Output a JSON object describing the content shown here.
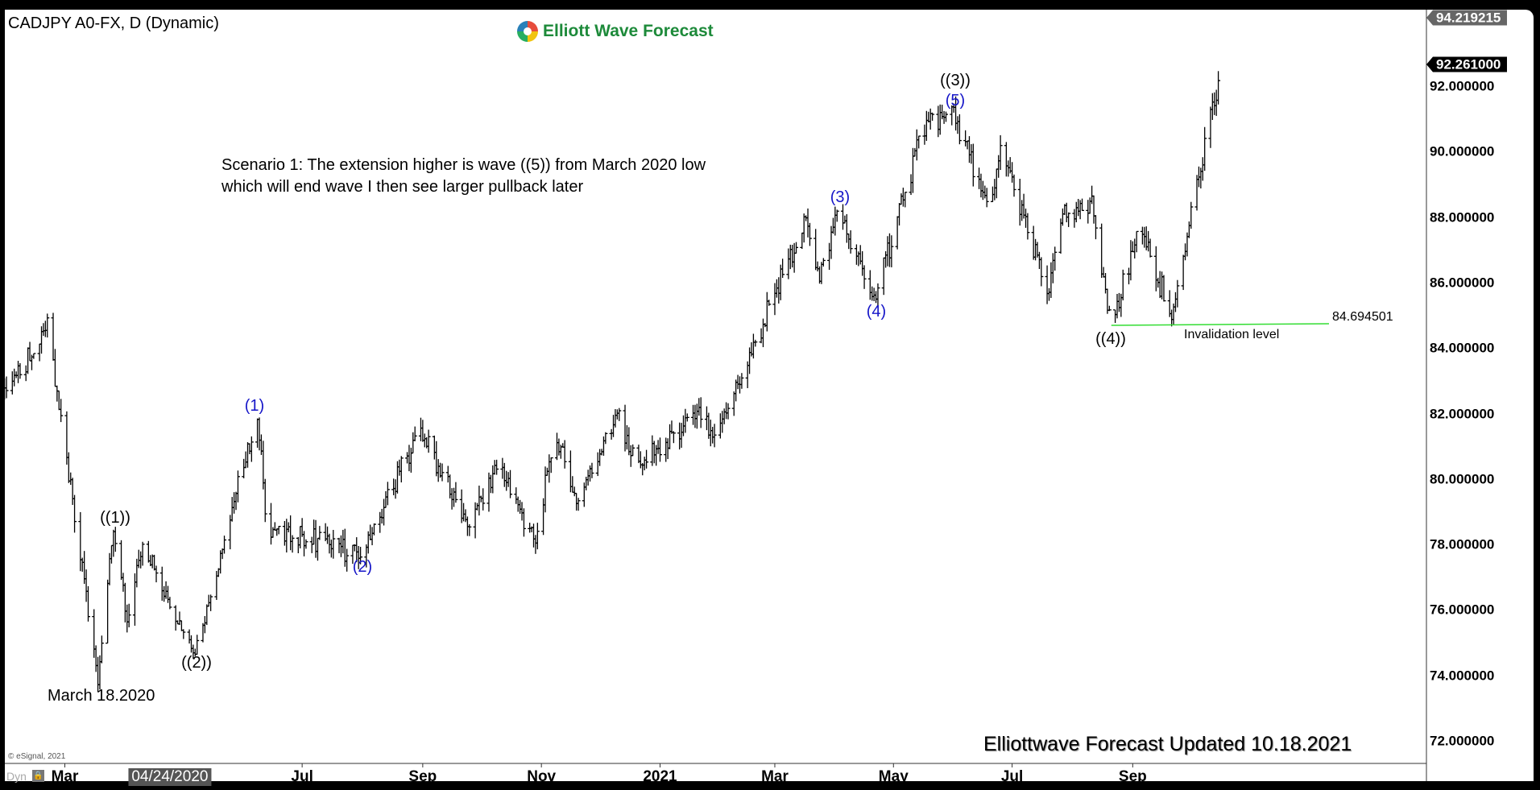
{
  "header": {
    "symbol_title": "CADJPY A0-FX, D (Dynamic)",
    "logo_text": "Elliott Wave Forecast"
  },
  "annotations": {
    "scenario": "Scenario 1: The extension higher is wave ((5)) from March 2020 low which will end wave I then see larger pullback later",
    "wave_1_major": "((1))",
    "wave_2_major": "((2))",
    "wave_3_major": "((3))",
    "wave_4_major": "((4))",
    "wave_1": "(1)",
    "wave_2": "(2)",
    "wave_3": "(3)",
    "wave_4": "(4)",
    "wave_5": "(5)",
    "low_label": "March 18.2020",
    "invalidation_value": "84.694501",
    "invalidation_label": "Invalidation level",
    "footer": "Elliottwave Forecast Updated 10.18.2021",
    "copyright": "© eSignal, 2021"
  },
  "bottom_bar": {
    "dyn_label": "Dyn",
    "lock_icon": "lock-icon"
  },
  "colors": {
    "bars": "#000000",
    "wave_blue": "#1515c8",
    "invalidation_line": "#33dd33",
    "logo_green": "#1d8a3a"
  },
  "chart_data": {
    "type": "ohlc",
    "symbol": "CADJPY",
    "interval": "D",
    "ylim": [
      71,
      94.6
    ],
    "y_ticks": [
      "72.000000",
      "74.000000",
      "76.000000",
      "78.000000",
      "80.000000",
      "82.000000",
      "84.000000",
      "86.000000",
      "88.000000",
      "90.000000",
      "92.000000"
    ],
    "x_ticks": [
      {
        "label": "Mar",
        "date": "2020-03-01"
      },
      {
        "label": "04/24/2020",
        "date": "2020-04-24",
        "highlighted": true
      },
      {
        "label": "Jul",
        "date": "2020-07-01"
      },
      {
        "label": "Sep",
        "date": "2020-09-01"
      },
      {
        "label": "Nov",
        "date": "2020-11-01"
      },
      {
        "label": "2021",
        "date": "2021-01-01"
      },
      {
        "label": "Mar",
        "date": "2021-03-01"
      },
      {
        "label": "May",
        "date": "2021-05-01"
      },
      {
        "label": "Jul",
        "date": "2021-07-01"
      },
      {
        "label": "Sep",
        "date": "2021-09-01"
      }
    ],
    "high_price_tag": "94.219215",
    "last_price_tag": "92.261000",
    "last_price": 92.261,
    "invalidation_level": 84.694501,
    "pivots": [
      {
        "date": "2020-01-30",
        "price": 82.6
      },
      {
        "date": "2020-02-21",
        "price": 84.7
      },
      {
        "date": "2020-03-18",
        "price": 73.9
      },
      {
        "date": "2020-03-26",
        "price": 78.5
      },
      {
        "date": "2020-04-02",
        "price": 75.5
      },
      {
        "date": "2020-04-10",
        "price": 78.0
      },
      {
        "date": "2020-05-07",
        "price": 74.8
      },
      {
        "date": "2020-06-08",
        "price": 81.9
      },
      {
        "date": "2020-06-13",
        "price": 78.5
      },
      {
        "date": "2020-07-31",
        "price": 77.7
      },
      {
        "date": "2020-08-31",
        "price": 81.5
      },
      {
        "date": "2020-09-24",
        "price": 78.5
      },
      {
        "date": "2020-10-10",
        "price": 80.5
      },
      {
        "date": "2020-10-29",
        "price": 78.0
      },
      {
        "date": "2020-11-08",
        "price": 81.3
      },
      {
        "date": "2020-11-19",
        "price": 79.3
      },
      {
        "date": "2020-12-10",
        "price": 82.0
      },
      {
        "date": "2020-12-20",
        "price": 80.3
      },
      {
        "date": "2021-01-21",
        "price": 82.0
      },
      {
        "date": "2021-01-28",
        "price": 81.1
      },
      {
        "date": "2021-03-17",
        "price": 87.9
      },
      {
        "date": "2021-03-24",
        "price": 86.2
      },
      {
        "date": "2021-04-02",
        "price": 88.2
      },
      {
        "date": "2021-04-21",
        "price": 85.5
      },
      {
        "date": "2021-05-16",
        "price": 90.7
      },
      {
        "date": "2021-05-31",
        "price": 91.3
      },
      {
        "date": "2021-06-20",
        "price": 88.0
      },
      {
        "date": "2021-06-25",
        "price": 90.2
      },
      {
        "date": "2021-07-20",
        "price": 85.5
      },
      {
        "date": "2021-07-25",
        "price": 88.0
      },
      {
        "date": "2021-08-11",
        "price": 88.4
      },
      {
        "date": "2021-08-21",
        "price": 84.7
      },
      {
        "date": "2021-09-05",
        "price": 87.8
      },
      {
        "date": "2021-09-21",
        "price": 84.9
      },
      {
        "date": "2021-09-30",
        "price": 87.8
      },
      {
        "date": "2021-10-17",
        "price": 92.6
      }
    ]
  }
}
